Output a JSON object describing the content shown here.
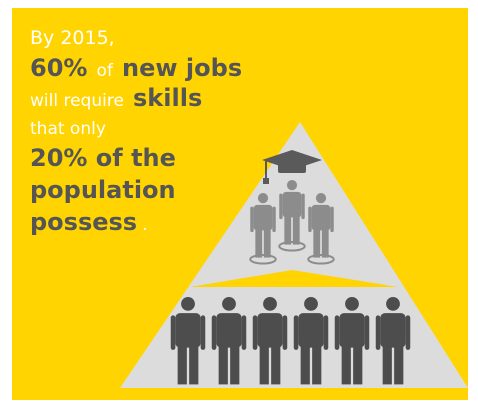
{
  "headline": {
    "line1": "By 2015,",
    "line2": {
      "percent": "60%",
      "of": "of",
      "jobs": "new jobs"
    },
    "line3": {
      "will": "will require",
      "skills": "skills"
    },
    "line4": "that only",
    "line5": "20% of the",
    "line6": "population",
    "line7": {
      "word": "possess",
      "dot": "."
    }
  }
}
